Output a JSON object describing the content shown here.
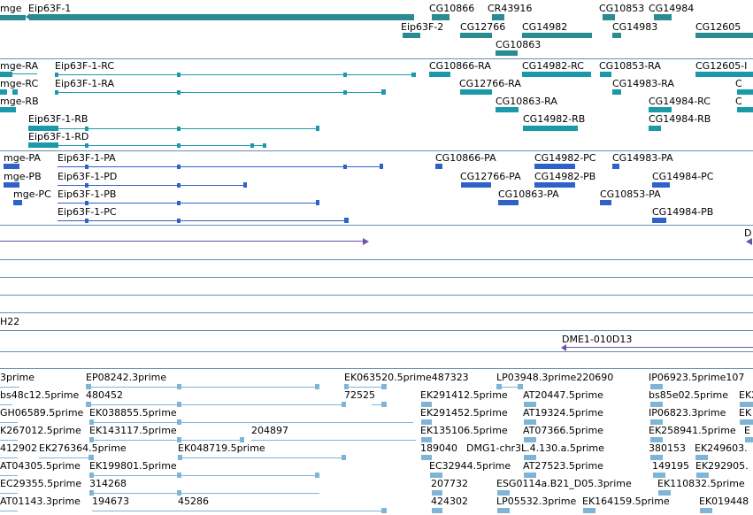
{
  "colors": {
    "gene": "#2a8c92",
    "transcript": "#1a9aa9",
    "protein": "#2f62c8",
    "alignment": "#6e4faa",
    "est": "#7fb4d6",
    "track_separator": "#6a8fb0"
  },
  "tracks": {
    "genes": {
      "labels": [
        "mge",
        "Eip63F-1",
        "CG10866",
        "CR43916",
        "CG10853",
        "CG14984",
        "Eip63F-2",
        "CG12766",
        "CG14982",
        "CG14983",
        "CG12605",
        "CG10863"
      ]
    },
    "transcripts": {
      "labels": [
        "mge-RA",
        "Eip63F-1-RC",
        "CG10866-RA",
        "CG14982-RC",
        "CG10853-RA",
        "CG12605-I",
        "mge-RC",
        "Eip63F-1-RA",
        "CG12766-RA",
        "CG14983-RA",
        "C",
        "mge-RB",
        "CG10863-RA",
        "CG14984-RC",
        "C",
        "Eip63F-1-RB",
        "CG14982-RB",
        "CG14984-RB",
        "Eip63F-1-RD"
      ]
    },
    "proteins": {
      "labels": [
        "mge-PA",
        "Eip63F-1-PA",
        "CG10866-PA",
        "CG14982-PC",
        "CG14983-PA",
        "mge-PB",
        "Eip63F-1-PD",
        "CG12766-PA",
        "CG14982-PB",
        "CG14984-PC",
        "mge-PC",
        "Eip63F-1-PB",
        "CG10863-PA",
        "CG10853-PA",
        "Eip63F-1-PC",
        "CG14984-PB"
      ]
    },
    "alignments": {
      "labels": [
        "D",
        "H22",
        "DME1-010D13"
      ]
    },
    "ests": {
      "labels": [
        "3prime",
        "EP08242.3prime",
        "EK063520.5prime487323",
        "LP03948.3prime220690",
        "IP06923.5prime107",
        "bs48c12.5prime",
        "480452",
        "72525",
        "EK291412.5prime",
        "AT20447.5prime",
        "bs85e02.5prime",
        "EK2",
        "GH06589.5prime",
        "EK038855.5prime",
        "EK291452.5prime",
        "AT19324.5prime",
        "IP06823.3prime",
        "EK",
        "K267012.5prime",
        "EK143117.5prime",
        "204897",
        "EK135106.5prime",
        "AT07366.5prime",
        "EK258941.5prime",
        "E",
        "412902",
        "EK276364.5prime",
        "EK048719.5prime",
        "189040",
        "DMG1-chr3L.4.130.a.5prime",
        "380153",
        "EK249603.",
        "AT04305.5prime",
        "EK199801.5prime",
        "EC32944.5prime",
        "AT27523.5prime",
        "149195",
        "EK292905.",
        "EC29355.5prime",
        "314268",
        "207732",
        "ESG0114a.B21_D05.3prime",
        "EK110832.5prime",
        "AT01143.3prime",
        "194673",
        "45286",
        "424302",
        "LP05532.3prime",
        "EK164159.5prime",
        "EK019448"
      ]
    }
  }
}
